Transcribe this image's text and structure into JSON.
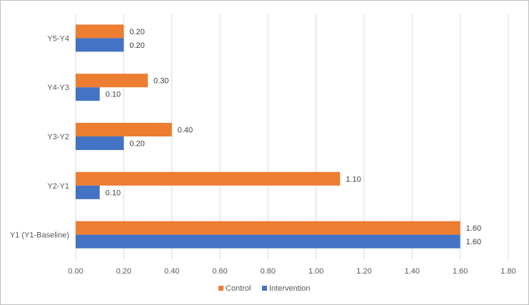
{
  "chart_data": {
    "type": "bar",
    "orientation": "horizontal",
    "categories": [
      "Y1 (Y1-Baseline)",
      "Y2-Y1",
      "Y3-Y2",
      "Y4-Y3",
      "Y5-Y4"
    ],
    "series": [
      {
        "name": "Control",
        "color": "#ED7D31",
        "values": [
          1.6,
          1.1,
          0.4,
          0.3,
          0.2
        ],
        "labels": [
          "1.60",
          "1.10",
          "0.40",
          "0.30",
          "0.20"
        ]
      },
      {
        "name": "Intervention",
        "color": "#4472C4",
        "values": [
          1.6,
          0.1,
          0.2,
          0.1,
          0.2
        ],
        "labels": [
          "1.60",
          "0.10",
          "0.20",
          "0.10",
          "0.20"
        ]
      }
    ],
    "x_ticks": [
      "0.00",
      "0.20",
      "0.40",
      "0.60",
      "0.80",
      "1.00",
      "1.20",
      "1.40",
      "1.60",
      "1.80"
    ],
    "xlim": [
      0,
      1.8
    ],
    "grid": true,
    "legend_position": "bottom-center",
    "title": "",
    "xlabel": "",
    "ylabel": ""
  }
}
